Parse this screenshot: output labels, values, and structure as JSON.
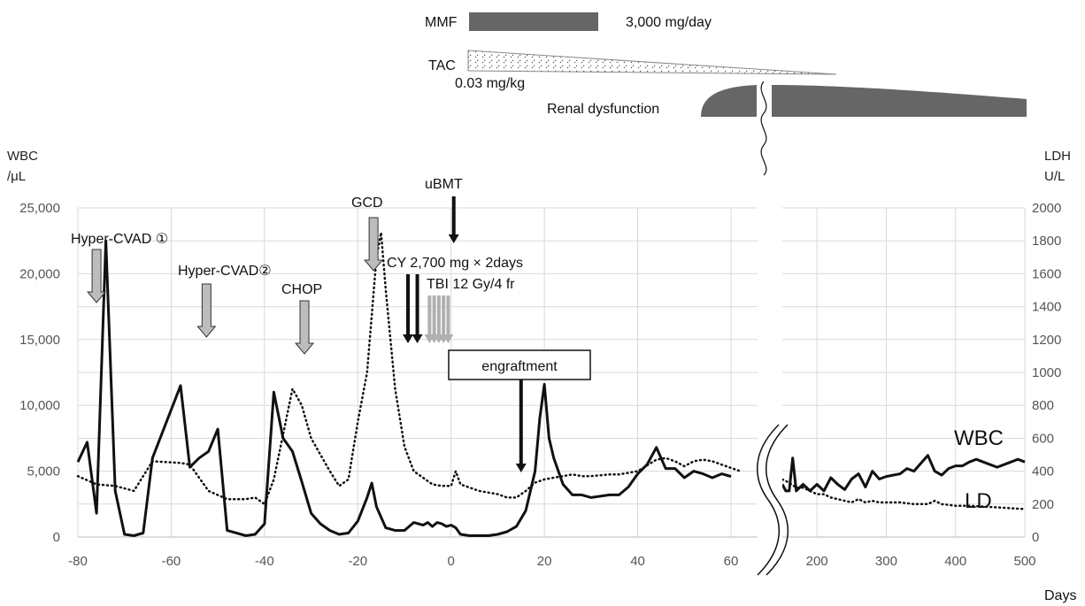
{
  "chart_data": {
    "type": "line",
    "y_left_label_1": "WBC",
    "y_left_label_2": "/μL",
    "y_right_label_1": "LDH",
    "y_right_label_2": "U/L",
    "xlabel": "Days",
    "ylim_left": [
      0,
      25000
    ],
    "ylim_right": [
      0,
      2000
    ],
    "y_left_ticks": [
      "0",
      "5,000",
      "10,000",
      "15,000",
      "20,000",
      "25,000"
    ],
    "y_right_ticks": [
      "0",
      "200",
      "400",
      "600",
      "800",
      "1000",
      "1200",
      "1400",
      "1600",
      "1800",
      "2000"
    ],
    "x_ticks_left": [
      "-80",
      "-60",
      "-40",
      "-20",
      "0",
      "20",
      "40",
      "60"
    ],
    "x_ticks_right": [
      "200",
      "300",
      "400",
      "500"
    ],
    "xlim_left": [
      -80,
      65
    ],
    "xlim_right": [
      150,
      500
    ],
    "axis_break": true,
    "grid": true,
    "series": [
      {
        "name": "WBC",
        "axis": "left",
        "style": "solid",
        "points_left": [
          [
            -80,
            5700
          ],
          [
            -78,
            7200
          ],
          [
            -76,
            1800
          ],
          [
            -74,
            22500
          ],
          [
            -72,
            3500
          ],
          [
            -70,
            200
          ],
          [
            -68,
            100
          ],
          [
            -66,
            300
          ],
          [
            -64,
            6000
          ],
          [
            -58,
            11500
          ],
          [
            -56,
            5300
          ],
          [
            -54,
            6000
          ],
          [
            -52,
            6500
          ],
          [
            -50,
            8200
          ],
          [
            -48,
            500
          ],
          [
            -44,
            100
          ],
          [
            -42,
            200
          ],
          [
            -40,
            1000
          ],
          [
            -38,
            11000
          ],
          [
            -36,
            7500
          ],
          [
            -34,
            6500
          ],
          [
            -32,
            4200
          ],
          [
            -30,
            1800
          ],
          [
            -28,
            1000
          ],
          [
            -26,
            500
          ],
          [
            -24,
            200
          ],
          [
            -22,
            300
          ],
          [
            -20,
            1200
          ],
          [
            -18,
            3000
          ],
          [
            -17,
            4100
          ],
          [
            -16,
            2300
          ],
          [
            -14,
            700
          ],
          [
            -12,
            500
          ],
          [
            -10,
            500
          ],
          [
            -8,
            1100
          ],
          [
            -6,
            900
          ],
          [
            -5,
            1100
          ],
          [
            -4,
            800
          ],
          [
            -3,
            1100
          ],
          [
            -2,
            1000
          ],
          [
            -1,
            800
          ],
          [
            0,
            900
          ],
          [
            1,
            700
          ],
          [
            2,
            200
          ],
          [
            4,
            100
          ],
          [
            6,
            100
          ],
          [
            8,
            100
          ],
          [
            10,
            200
          ],
          [
            12,
            400
          ],
          [
            14,
            800
          ],
          [
            16,
            2000
          ],
          [
            18,
            5000
          ],
          [
            19,
            9000
          ],
          [
            20,
            11600
          ],
          [
            21,
            7500
          ],
          [
            22,
            6000
          ],
          [
            24,
            4000
          ],
          [
            26,
            3200
          ],
          [
            28,
            3200
          ],
          [
            30,
            3000
          ],
          [
            34,
            3200
          ],
          [
            36,
            3200
          ],
          [
            38,
            3800
          ],
          [
            40,
            4800
          ],
          [
            42,
            5500
          ],
          [
            44,
            6800
          ],
          [
            46,
            5200
          ],
          [
            48,
            5200
          ],
          [
            50,
            4500
          ],
          [
            52,
            5000
          ],
          [
            54,
            4800
          ],
          [
            56,
            4500
          ],
          [
            58,
            4800
          ],
          [
            60,
            4600
          ]
        ],
        "points_right": [
          [
            150,
            4000
          ],
          [
            155,
            3500
          ],
          [
            160,
            3500
          ],
          [
            165,
            6000
          ],
          [
            170,
            3500
          ],
          [
            180,
            4000
          ],
          [
            190,
            3500
          ],
          [
            200,
            4000
          ],
          [
            210,
            3500
          ],
          [
            220,
            4500
          ],
          [
            230,
            4000
          ],
          [
            240,
            3600
          ],
          [
            250,
            4400
          ],
          [
            260,
            4800
          ],
          [
            270,
            3800
          ],
          [
            280,
            5000
          ],
          [
            290,
            4400
          ],
          [
            300,
            4600
          ],
          [
            320,
            4800
          ],
          [
            330,
            5200
          ],
          [
            340,
            5000
          ],
          [
            360,
            6200
          ],
          [
            370,
            5000
          ],
          [
            380,
            4700
          ],
          [
            390,
            5200
          ],
          [
            400,
            5400
          ],
          [
            410,
            5400
          ],
          [
            420,
            5700
          ],
          [
            430,
            5900
          ],
          [
            440,
            5700
          ],
          [
            450,
            5500
          ],
          [
            460,
            5300
          ],
          [
            470,
            5500
          ],
          [
            480,
            5700
          ],
          [
            490,
            5900
          ],
          [
            500,
            5700
          ]
        ]
      },
      {
        "name": "LD",
        "axis": "right",
        "style": "dotted",
        "points_left": [
          [
            -80,
            370
          ],
          [
            -76,
            320
          ],
          [
            -72,
            310
          ],
          [
            -68,
            280
          ],
          [
            -64,
            460
          ],
          [
            -58,
            450
          ],
          [
            -56,
            440
          ],
          [
            -52,
            280
          ],
          [
            -48,
            230
          ],
          [
            -44,
            230
          ],
          [
            -42,
            240
          ],
          [
            -40,
            200
          ],
          [
            -38,
            350
          ],
          [
            -34,
            900
          ],
          [
            -32,
            800
          ],
          [
            -30,
            600
          ],
          [
            -28,
            500
          ],
          [
            -26,
            400
          ],
          [
            -24,
            310
          ],
          [
            -22,
            350
          ],
          [
            -20,
            700
          ],
          [
            -18,
            1000
          ],
          [
            -16,
            1700
          ],
          [
            -15,
            1850
          ],
          [
            -14,
            1500
          ],
          [
            -12,
            900
          ],
          [
            -10,
            550
          ],
          [
            -8,
            400
          ],
          [
            -6,
            360
          ],
          [
            -4,
            320
          ],
          [
            -2,
            310
          ],
          [
            0,
            310
          ],
          [
            1,
            400
          ],
          [
            2,
            320
          ],
          [
            4,
            300
          ],
          [
            6,
            280
          ],
          [
            8,
            270
          ],
          [
            10,
            260
          ],
          [
            12,
            240
          ],
          [
            14,
            240
          ],
          [
            16,
            280
          ],
          [
            18,
            330
          ],
          [
            20,
            350
          ],
          [
            22,
            360
          ],
          [
            24,
            370
          ],
          [
            26,
            380
          ],
          [
            28,
            370
          ],
          [
            30,
            370
          ],
          [
            34,
            380
          ],
          [
            36,
            380
          ],
          [
            40,
            400
          ],
          [
            44,
            470
          ],
          [
            46,
            480
          ],
          [
            48,
            460
          ],
          [
            50,
            430
          ],
          [
            52,
            460
          ],
          [
            54,
            470
          ],
          [
            56,
            460
          ],
          [
            58,
            440
          ],
          [
            60,
            420
          ],
          [
            62,
            400
          ]
        ],
        "points_right": [
          [
            150,
            350
          ],
          [
            160,
            330
          ],
          [
            170,
            300
          ],
          [
            180,
            300
          ],
          [
            190,
            280
          ],
          [
            200,
            260
          ],
          [
            210,
            260
          ],
          [
            220,
            240
          ],
          [
            230,
            230
          ],
          [
            240,
            220
          ],
          [
            250,
            210
          ],
          [
            260,
            230
          ],
          [
            270,
            210
          ],
          [
            280,
            220
          ],
          [
            290,
            210
          ],
          [
            300,
            210
          ],
          [
            320,
            210
          ],
          [
            340,
            200
          ],
          [
            360,
            200
          ],
          [
            370,
            220
          ],
          [
            380,
            200
          ],
          [
            400,
            190
          ],
          [
            420,
            190
          ],
          [
            440,
            185
          ],
          [
            460,
            180
          ],
          [
            480,
            175
          ],
          [
            500,
            170
          ]
        ]
      }
    ],
    "annotations": [
      {
        "text": "Hyper-CVAD ①",
        "day": -76
      },
      {
        "text": "Hyper-CVAD②",
        "day": -53
      },
      {
        "text": "CHOP",
        "day": -32
      },
      {
        "text": "GCD",
        "day": -17
      },
      {
        "text": "uBMT",
        "day": 0
      },
      {
        "text": "CY 2,700 mg × 2days",
        "days": [
          -10,
          -8
        ]
      },
      {
        "text": "TBI 12 Gy/4 fr",
        "days": [
          -5,
          -4,
          -3,
          -2,
          -1
        ]
      },
      {
        "text": "engraftment",
        "day": 15
      }
    ],
    "series_labels": {
      "wbc": "WBC",
      "ld": "LD"
    }
  },
  "top_panel": {
    "mmf_label": "MMF",
    "mmf_dose": "3,000 mg/day",
    "tac_label": "TAC",
    "tac_dose": "0.03 mg/kg",
    "renal_label": "Renal dysfunction"
  },
  "colors": {
    "main": "#111111",
    "bar": "#666666",
    "arrow_gray": "#bbbbbb",
    "grid": "#d9d9d9"
  }
}
